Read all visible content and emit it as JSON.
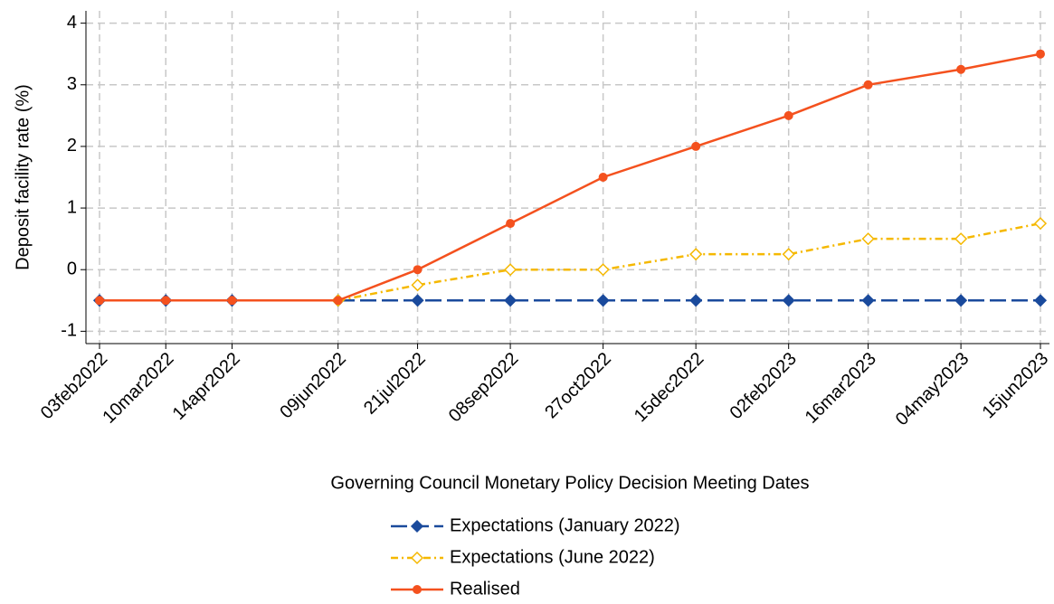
{
  "chart_data": {
    "type": "line",
    "x_label": "Governing Council Monetary Policy Decision Meeting Dates",
    "y_label": "Deposit facility rate (%)",
    "x": [
      "03feb2022",
      "10mar2022",
      "14apr2022",
      "09jun2022",
      "21jul2022",
      "08sep2022",
      "27oct2022",
      "15dec2022",
      "02feb2023",
      "16mar2023",
      "04may2023",
      "15jun2023"
    ],
    "series": [
      {
        "name": "Expectations (January 2022)",
        "color": "#1a4a9c",
        "marker": "diamond",
        "dash": "long",
        "values": [
          -0.5,
          -0.5,
          -0.5,
          -0.5,
          -0.5,
          -0.5,
          -0.5,
          -0.5,
          -0.5,
          -0.5,
          -0.5,
          -0.5
        ]
      },
      {
        "name": "Expectations (June 2022)",
        "color": "#f5b800",
        "marker": "hollow-diamond",
        "dash": "dashdot",
        "values": [
          null,
          null,
          null,
          -0.5,
          -0.25,
          0,
          0,
          0.25,
          0.25,
          0.5,
          0.5,
          0.75
        ]
      },
      {
        "name": "Realised",
        "color": "#f4511e",
        "marker": "circle",
        "dash": "solid",
        "values": [
          -0.5,
          -0.5,
          -0.5,
          -0.5,
          0,
          0.75,
          1.5,
          2,
          2.5,
          3,
          3.25,
          3.5
        ]
      }
    ],
    "ylim": [
      -1.2,
      4.2
    ],
    "yticks": [
      -1,
      0,
      1,
      2,
      3,
      4
    ],
    "grid": true,
    "legend": "bottom"
  }
}
